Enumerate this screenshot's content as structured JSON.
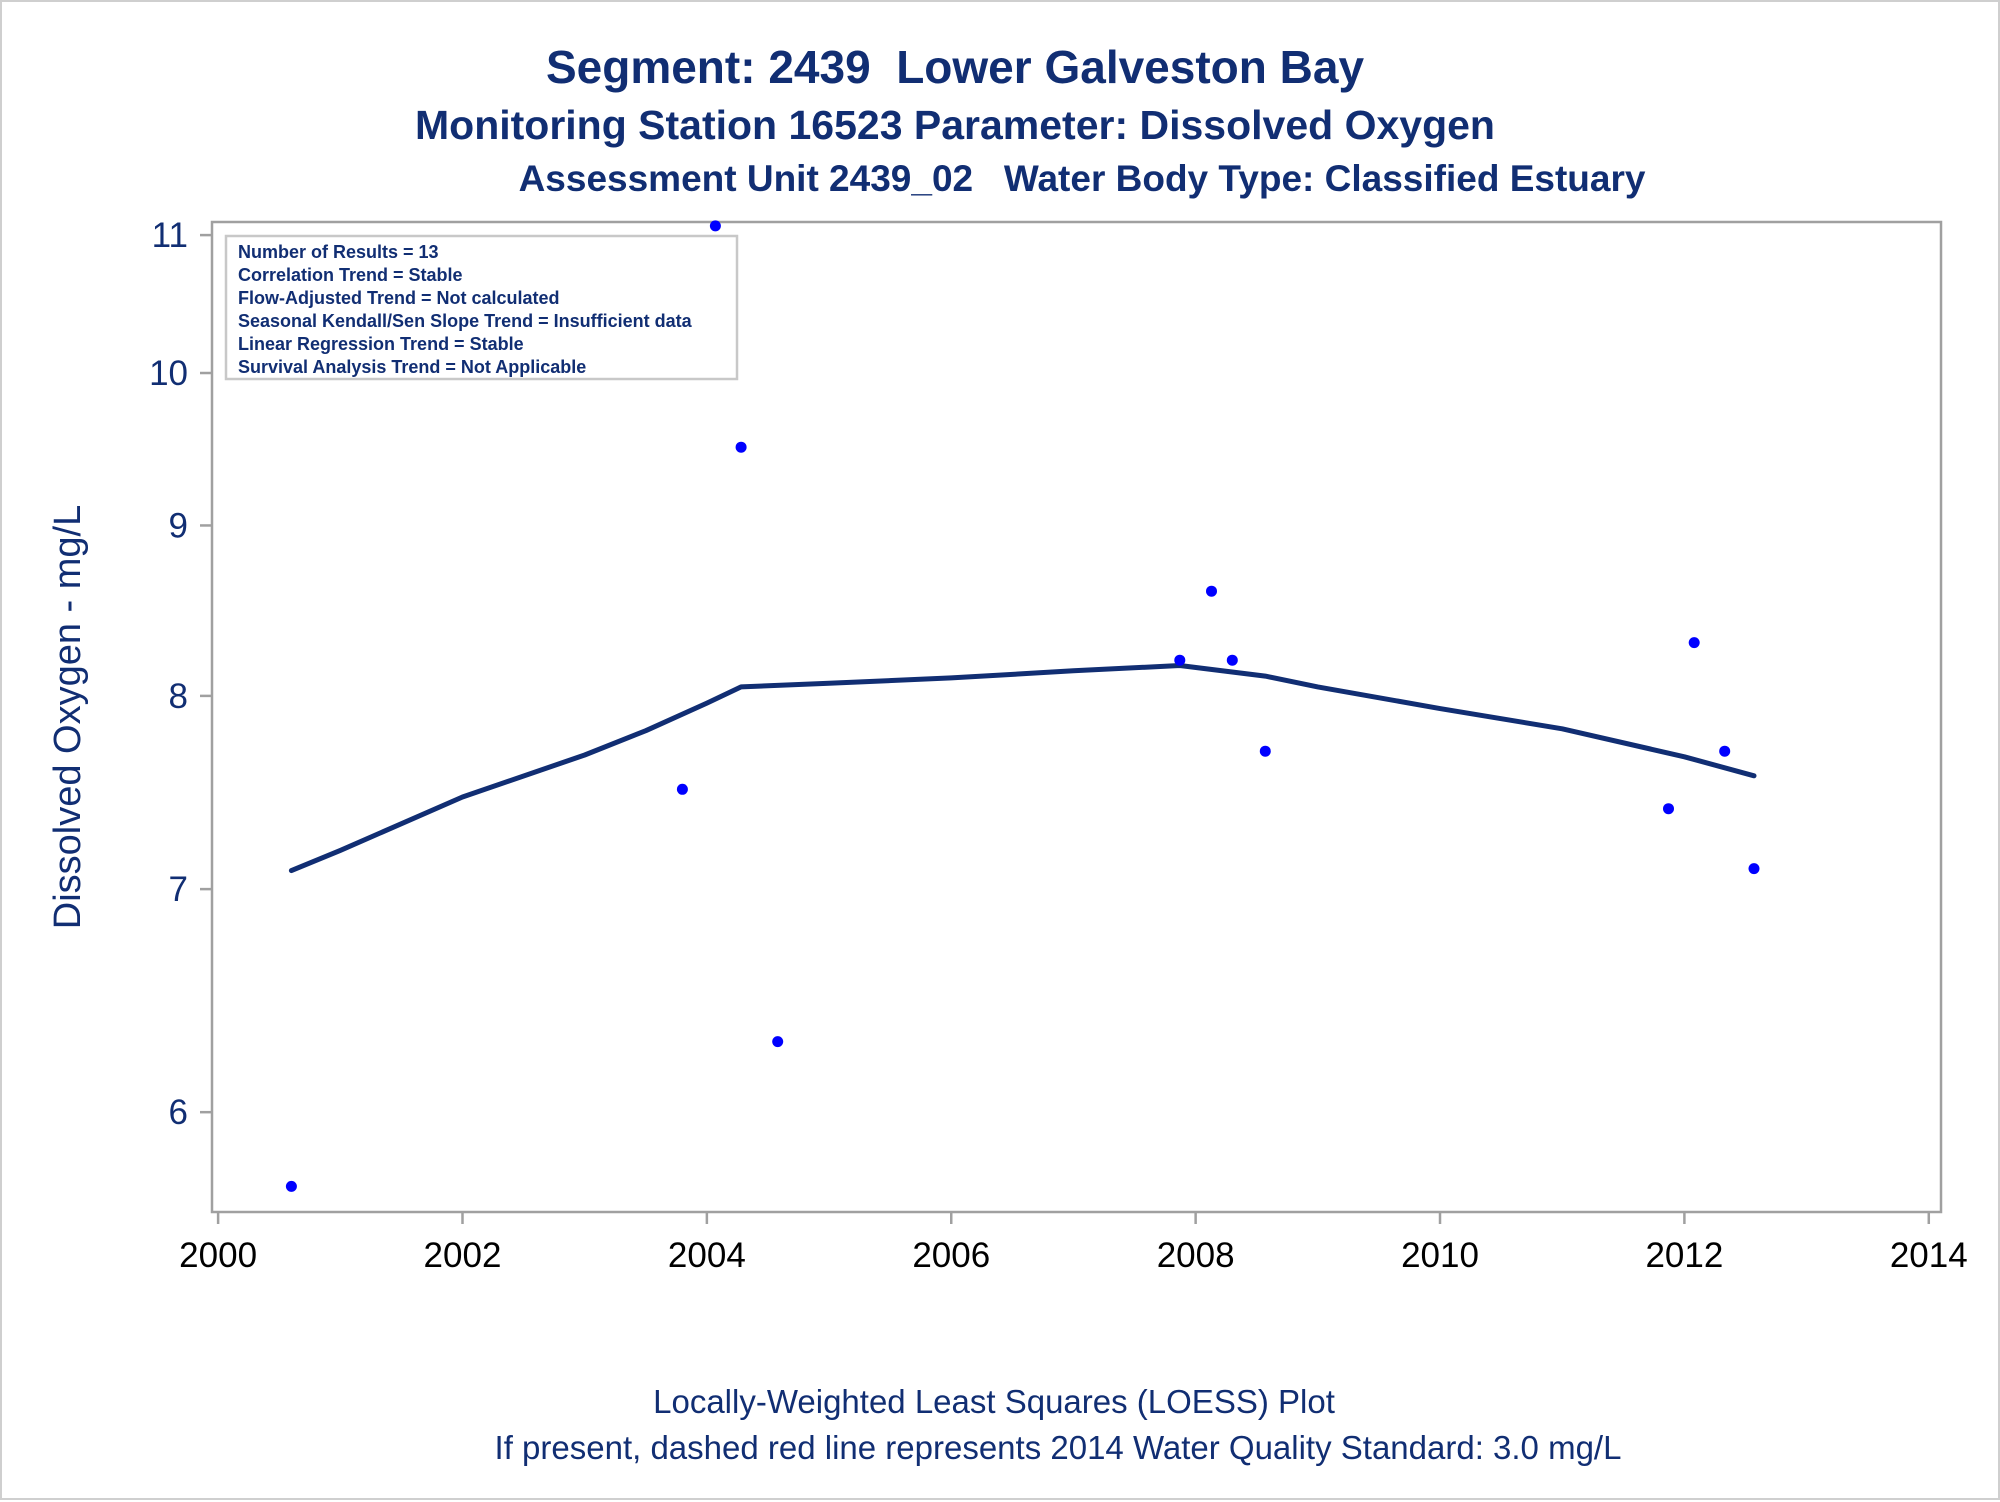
{
  "titles": {
    "line1": "Segment: 2439  Lower Galveston Bay",
    "line2": "Monitoring Station 16523 Parameter: Dissolved Oxygen",
    "line3": "Assessment Unit 2439_02   Water Body Type: Classified Estuary"
  },
  "footnotes": {
    "line1": "Locally-Weighted Least Squares (LOESS) Plot",
    "line2": "If present, dashed red line represents 2014 Water Quality Standard: 3.0 mg/L"
  },
  "colors": {
    "text": "#112e73",
    "points": "#0000ff",
    "loess_line": "#112e73",
    "frame": "#a0a0a0",
    "legend_border": "#c8c8c8",
    "tick_text_x": "#000000"
  },
  "chart_data": {
    "type": "scatter",
    "ylabel": "Dissolved Oxygen - mg/L",
    "xlabel": "",
    "x_ticks": [
      2000,
      2002,
      2004,
      2006,
      2008,
      2010,
      2012,
      2014
    ],
    "y_ticks": [
      6,
      7,
      8,
      9,
      10,
      11
    ],
    "xlim": [
      1999.95,
      2014.1
    ],
    "ylim": [
      5.6,
      11.1
    ],
    "y_scale": "log",
    "grid": false,
    "legend_placement": "top-left",
    "stats_box": [
      "Number of Results = 13",
      "Correlation Trend = Stable",
      "Flow-Adjusted Trend = Not calculated",
      "Seasonal Kendall/Sen Slope Trend = Insufficient data",
      "Linear Regression Trend = Stable",
      "Survival Analysis Trend = Not Applicable"
    ],
    "series": [
      {
        "kind": "points",
        "points": [
          [
            2000.6,
            5.7
          ],
          [
            2003.8,
            7.5
          ],
          [
            2004.07,
            11.07
          ],
          [
            2004.28,
            9.5
          ],
          [
            2004.58,
            6.3
          ],
          [
            2007.87,
            8.2
          ],
          [
            2008.13,
            8.6
          ],
          [
            2008.3,
            8.2
          ],
          [
            2008.57,
            7.7
          ],
          [
            2011.87,
            7.4
          ],
          [
            2012.08,
            8.3
          ],
          [
            2012.33,
            7.7
          ],
          [
            2012.57,
            7.1
          ]
        ]
      },
      {
        "kind": "loess_line",
        "points": [
          [
            2000.6,
            7.09
          ],
          [
            2001.0,
            7.19
          ],
          [
            2002.0,
            7.46
          ],
          [
            2003.0,
            7.68
          ],
          [
            2003.5,
            7.81
          ],
          [
            2004.0,
            7.96
          ],
          [
            2004.28,
            8.05
          ],
          [
            2005.0,
            8.07
          ],
          [
            2006.0,
            8.1
          ],
          [
            2007.0,
            8.14
          ],
          [
            2007.87,
            8.17
          ],
          [
            2008.57,
            8.11
          ],
          [
            2009.0,
            8.05
          ],
          [
            2010.0,
            7.93
          ],
          [
            2011.0,
            7.82
          ],
          [
            2012.0,
            7.67
          ],
          [
            2012.57,
            7.57
          ]
        ]
      }
    ]
  }
}
